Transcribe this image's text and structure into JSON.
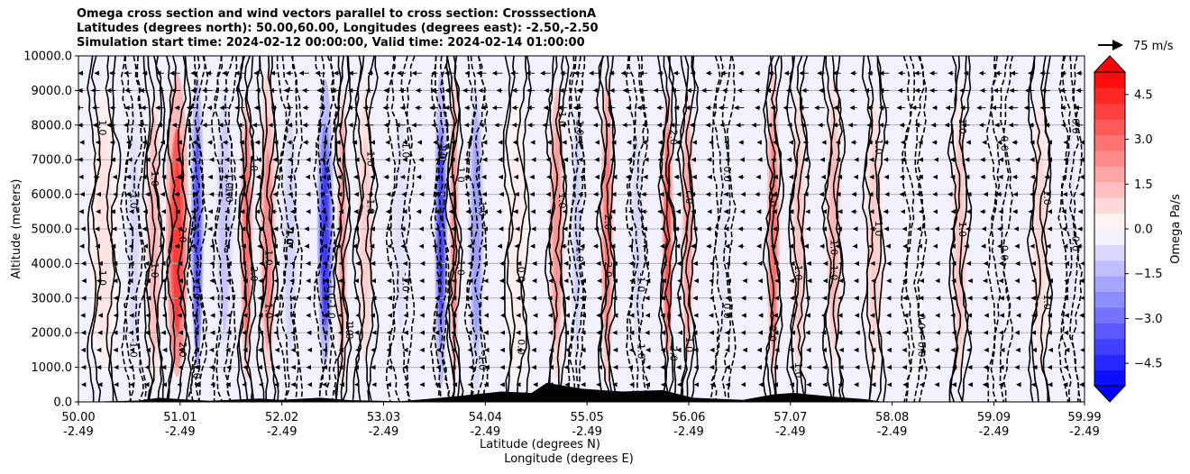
{
  "chart_data": {
    "type": "contour",
    "title_lines": [
      "Omega cross section and wind vectors parallel to cross section: CrosssectionA",
      "Latitudes (degrees north): 50.00,60.00, Longitudes (degrees east): -2.50,-2.50",
      "Simulation start time: 2024-02-12 00:00:00, Valid time: 2024-02-14 01:00:00"
    ],
    "ylabel": "Altitude (meters)",
    "xlabel_lat": "Latitude (degrees N)",
    "xlabel_lon": "Longitude (degrees E)",
    "ylim": [
      0,
      10000
    ],
    "yticks": [
      0,
      1000,
      2000,
      3000,
      4000,
      5000,
      6000,
      7000,
      8000,
      9000,
      10000
    ],
    "ytick_labels": [
      "0.0",
      "1000.0",
      "2000.0",
      "3000.0",
      "4000.0",
      "5000.0",
      "6000.0",
      "7000.0",
      "8000.0",
      "9000.0",
      "10000.0"
    ],
    "xlim": [
      50.0,
      59.99
    ],
    "xticks": [
      50.0,
      51.01,
      52.02,
      53.03,
      54.04,
      55.05,
      56.06,
      57.07,
      58.08,
      59.09,
      59.99
    ],
    "xtick_lat_labels": [
      "50.00",
      "51.01",
      "52.02",
      "53.03",
      "54.04",
      "55.05",
      "56.06",
      "57.07",
      "58.08",
      "59.09",
      "59.99"
    ],
    "xtick_lon_labels": [
      "-2.49",
      "-2.49",
      "-2.49",
      "-2.49",
      "-2.49",
      "-2.49",
      "-2.49",
      "-2.49",
      "-2.49",
      "-2.49",
      "-2.49"
    ],
    "colorbar": {
      "label": "Omega Pa/s",
      "range": [
        -5.25,
        5.25
      ],
      "ticks": [
        -4.5,
        -3.0,
        -1.5,
        0.0,
        1.5,
        3.0,
        4.5
      ],
      "tick_labels": [
        "−4.5",
        "−3.0",
        "−1.5",
        "0.0",
        "1.5",
        "3.0",
        "4.5"
      ],
      "extend": "both",
      "cmap": "bwr"
    },
    "quiver_key": {
      "label": "75 m/s",
      "speed": 75
    },
    "contour_labels": [
      "0.0",
      "1.0",
      "-1.0",
      "2.0",
      "-2.0",
      "3.0",
      "4.0",
      "5.0"
    ],
    "omega_bands": [
      {
        "lat_center": 50.25,
        "width": 0.18,
        "value": 0.6
      },
      {
        "lat_center": 50.55,
        "width": 0.12,
        "value": -0.8
      },
      {
        "lat_center": 50.75,
        "width": 0.1,
        "value": 1.5
      },
      {
        "lat_center": 50.98,
        "width": 0.14,
        "value": 4.0
      },
      {
        "lat_center": 51.18,
        "width": 0.08,
        "value": -3.5
      },
      {
        "lat_center": 51.45,
        "width": 0.12,
        "value": -1.2
      },
      {
        "lat_center": 51.67,
        "width": 0.08,
        "value": 3.0
      },
      {
        "lat_center": 51.88,
        "width": 0.1,
        "value": 2.5
      },
      {
        "lat_center": 52.1,
        "width": 0.12,
        "value": -0.9
      },
      {
        "lat_center": 52.45,
        "width": 0.1,
        "value": -4.0
      },
      {
        "lat_center": 52.62,
        "width": 0.07,
        "value": 2.0
      },
      {
        "lat_center": 52.85,
        "width": 0.12,
        "value": 1.0
      },
      {
        "lat_center": 53.2,
        "width": 0.15,
        "value": -0.6
      },
      {
        "lat_center": 53.6,
        "width": 0.08,
        "value": -3.8
      },
      {
        "lat_center": 53.73,
        "width": 0.06,
        "value": 2.5
      },
      {
        "lat_center": 53.95,
        "width": 0.1,
        "value": -2.0
      },
      {
        "lat_center": 54.35,
        "width": 0.15,
        "value": 0.4
      },
      {
        "lat_center": 54.75,
        "width": 0.1,
        "value": 2.2
      },
      {
        "lat_center": 54.95,
        "width": 0.08,
        "value": -1.0
      },
      {
        "lat_center": 55.25,
        "width": 0.08,
        "value": 2.8
      },
      {
        "lat_center": 55.55,
        "width": 0.1,
        "value": -0.8
      },
      {
        "lat_center": 55.85,
        "width": 0.07,
        "value": 3.5
      },
      {
        "lat_center": 56.05,
        "width": 0.08,
        "value": 2.0
      },
      {
        "lat_center": 56.4,
        "width": 0.12,
        "value": -0.5
      },
      {
        "lat_center": 56.9,
        "width": 0.08,
        "value": 3.0
      },
      {
        "lat_center": 57.15,
        "width": 0.1,
        "value": 1.2
      },
      {
        "lat_center": 57.5,
        "width": 0.1,
        "value": 1.5
      },
      {
        "lat_center": 57.9,
        "width": 0.12,
        "value": 1.0
      },
      {
        "lat_center": 58.3,
        "width": 0.12,
        "value": -0.3
      },
      {
        "lat_center": 58.75,
        "width": 0.1,
        "value": 1.2
      },
      {
        "lat_center": 59.15,
        "width": 0.12,
        "value": -0.4
      },
      {
        "lat_center": 59.55,
        "width": 0.12,
        "value": 0.8
      },
      {
        "lat_center": 59.85,
        "width": 0.1,
        "value": -0.5
      }
    ],
    "terrain": [
      {
        "lat": 50.0,
        "alt": 0
      },
      {
        "lat": 50.6,
        "alt": 40
      },
      {
        "lat": 50.8,
        "alt": 120
      },
      {
        "lat": 51.0,
        "alt": 80
      },
      {
        "lat": 51.3,
        "alt": 30
      },
      {
        "lat": 51.8,
        "alt": 100
      },
      {
        "lat": 52.0,
        "alt": 60
      },
      {
        "lat": 52.4,
        "alt": 120
      },
      {
        "lat": 52.7,
        "alt": 50
      },
      {
        "lat": 53.2,
        "alt": 20
      },
      {
        "lat": 53.6,
        "alt": 120
      },
      {
        "lat": 54.2,
        "alt": 300
      },
      {
        "lat": 54.5,
        "alt": 260
      },
      {
        "lat": 54.65,
        "alt": 550
      },
      {
        "lat": 55.0,
        "alt": 380
      },
      {
        "lat": 55.4,
        "alt": 300
      },
      {
        "lat": 55.8,
        "alt": 340
      },
      {
        "lat": 56.1,
        "alt": 120
      },
      {
        "lat": 56.6,
        "alt": 60
      },
      {
        "lat": 56.9,
        "alt": 220
      },
      {
        "lat": 57.1,
        "alt": 260
      },
      {
        "lat": 57.5,
        "alt": 150
      },
      {
        "lat": 57.8,
        "alt": 80
      },
      {
        "lat": 58.0,
        "alt": 0
      },
      {
        "lat": 59.99,
        "alt": 0
      }
    ]
  }
}
